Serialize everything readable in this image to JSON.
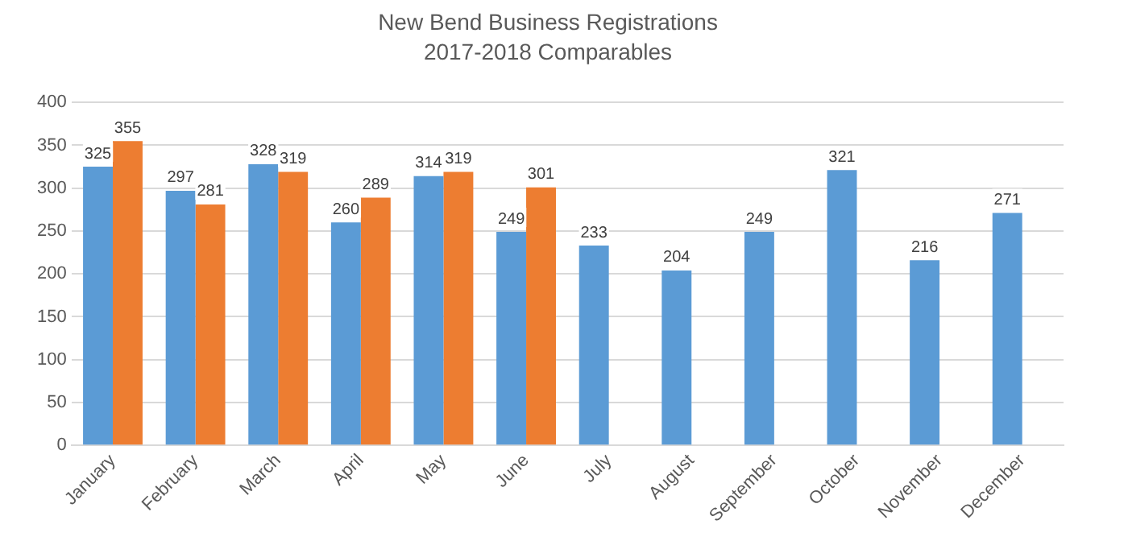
{
  "chart_data": {
    "type": "bar",
    "title": "New Bend Business Registrations",
    "subtitle": "2017-2018 Comparables",
    "categories": [
      "January",
      "February",
      "March",
      "April",
      "May",
      "June",
      "July",
      "August",
      "September",
      "October",
      "November",
      "December"
    ],
    "series": [
      {
        "color": "#5b9bd5",
        "values": [
          325,
          297,
          328,
          260,
          314,
          249,
          233,
          204,
          249,
          321,
          216,
          271
        ]
      },
      {
        "color": "#ed7d31",
        "values": [
          355,
          281,
          319,
          289,
          319,
          301,
          null,
          null,
          null,
          null,
          null,
          null
        ]
      }
    ],
    "ylim": [
      0,
      400
    ],
    "yticks": [
      0,
      50,
      100,
      150,
      200,
      250,
      300,
      350,
      400
    ],
    "grid": "y",
    "legend": false,
    "data_labels": true
  }
}
